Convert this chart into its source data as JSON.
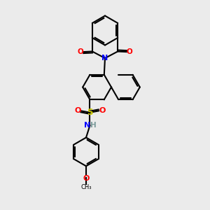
{
  "background_color": "#ebebeb",
  "bond_color": "#000000",
  "atom_colors": {
    "N": "#0000ff",
    "O": "#ff0000",
    "S": "#cccc00",
    "H": "#7a9a9a",
    "C": "#000000"
  },
  "figsize": [
    3.0,
    3.0
  ],
  "dpi": 100
}
